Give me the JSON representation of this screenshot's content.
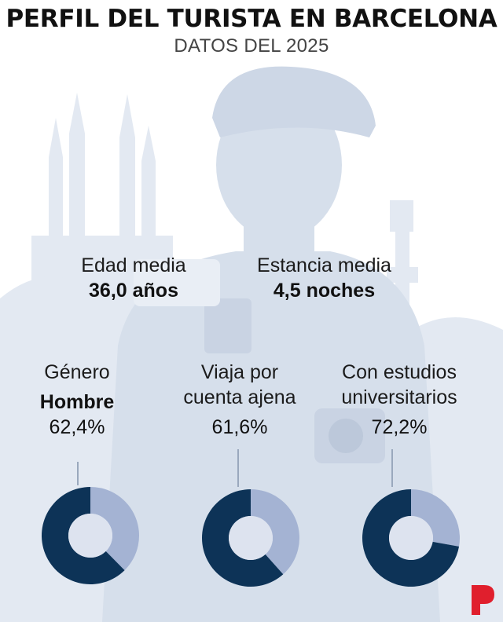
{
  "header": {
    "title": "PERFIL DEL TURISTA EN BARCELONA",
    "subtitle": "DATOS DEL 2025"
  },
  "stats": {
    "age": {
      "label": "Edad media",
      "value": "36,0 años"
    },
    "stay": {
      "label": "Estancia media",
      "value": "4,5 noches"
    }
  },
  "donut_labels": [
    {
      "line1": "Género",
      "line2": "",
      "bold": "Hombre",
      "pct": "62,4%"
    },
    {
      "line1": "Viaja por",
      "line2": "cuenta ajena",
      "bold": "",
      "pct": "61,6%"
    },
    {
      "line1": "Con estudios",
      "line2": "universitarios",
      "bold": "",
      "pct": "72,2%"
    }
  ],
  "colors": {
    "primary": "#0d3357",
    "secondary": "#a4b3d3",
    "hole": "#dde3ef",
    "background_art": "#dfe6f0",
    "logo": "#e01f2d"
  },
  "logo_icon": "p-logo-icon",
  "chart_data": [
    {
      "type": "pie",
      "categories": [
        "Hombre",
        ""
      ],
      "values": [
        62.4,
        37.6
      ]
    },
    {
      "type": "pie",
      "categories": [
        "Viaja por cuenta ajena",
        ""
      ],
      "values": [
        61.6,
        38.4
      ]
    },
    {
      "type": "pie",
      "categories": [
        "Con estudios universitarios",
        ""
      ],
      "values": [
        72.2,
        27.8
      ]
    }
  ]
}
